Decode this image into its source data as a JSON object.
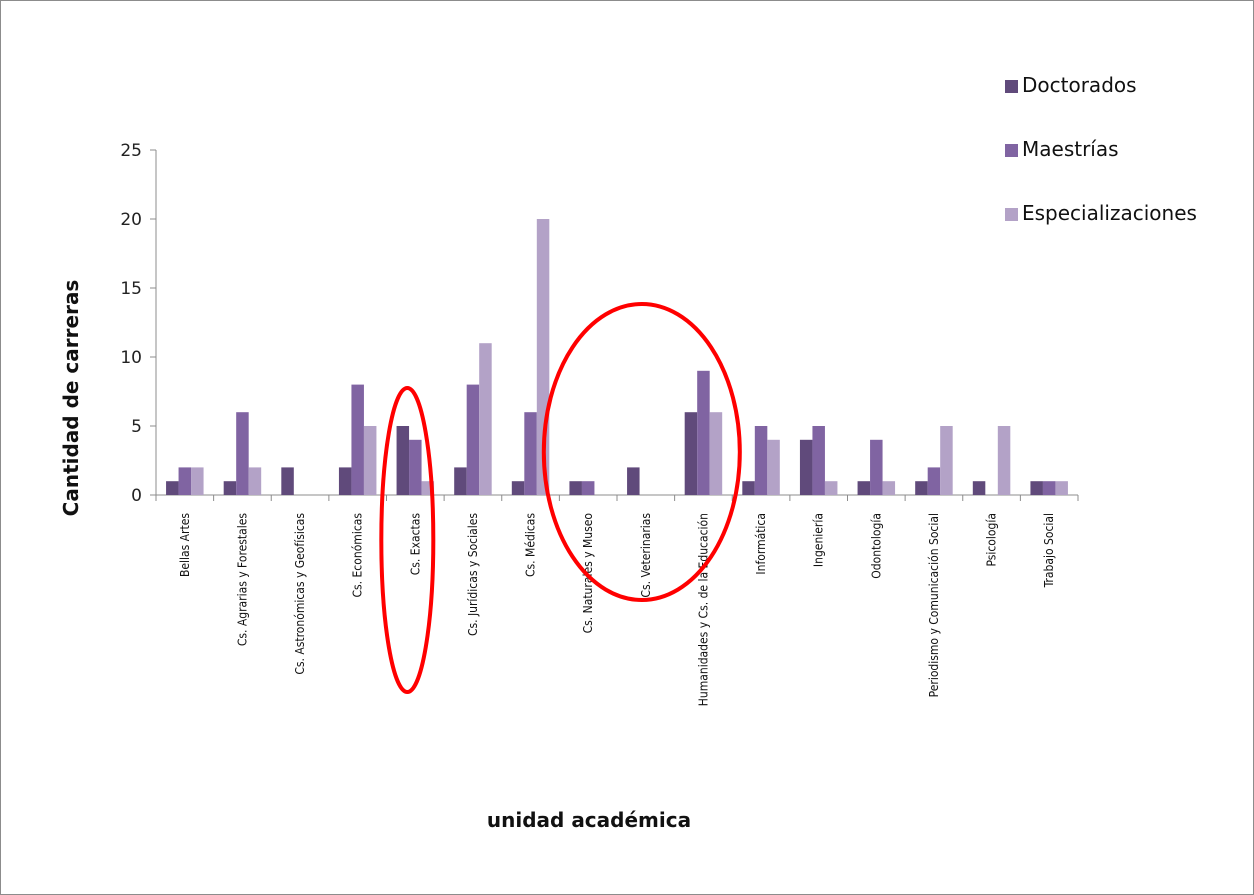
{
  "chart_data": {
    "type": "bar",
    "title": "",
    "xlabel": "unidad académica",
    "ylabel": "Cantidad de carreras",
    "ylim": [
      0,
      25
    ],
    "yticks": [
      0,
      5,
      10,
      15,
      20,
      25
    ],
    "grid": false,
    "legend_position": "top-right",
    "categories": [
      "Bellas Artes",
      "Cs. Agrarias y Forestales",
      "Cs. Astronómicas y Geofísicas",
      "Cs. Económicas",
      "Cs. Exactas",
      "Cs. Jurídicas y Sociales",
      "Cs. Médicas",
      "Cs. Naturales y Museo",
      "Cs. Veterinarias",
      "Humanidades y Cs. de la Educación",
      "Informática",
      "Ingeniería",
      "Odontología",
      "Periodismo y Comunicación Social",
      "Psicología",
      "Trabajo Social"
    ],
    "series": [
      {
        "name": "Doctorados",
        "color": "#604a7b",
        "values": [
          1,
          1,
          2,
          2,
          5,
          2,
          1,
          1,
          2,
          6,
          1,
          4,
          1,
          1,
          1,
          1
        ]
      },
      {
        "name": "Maestrías",
        "color": "#8064a2",
        "values": [
          2,
          6,
          0,
          8,
          4,
          8,
          6,
          1,
          0,
          9,
          5,
          5,
          4,
          2,
          0,
          1
        ]
      },
      {
        "name": "Especializaciones",
        "color": "#b3a2c7",
        "values": [
          2,
          2,
          0,
          5,
          1,
          11,
          20,
          0,
          0,
          6,
          4,
          1,
          1,
          5,
          5,
          1
        ]
      }
    ],
    "highlight_color": "#ff0000",
    "highlights": [
      {
        "category": "Cs. Exactas"
      },
      {
        "category": "Cs. Veterinarias"
      }
    ]
  }
}
